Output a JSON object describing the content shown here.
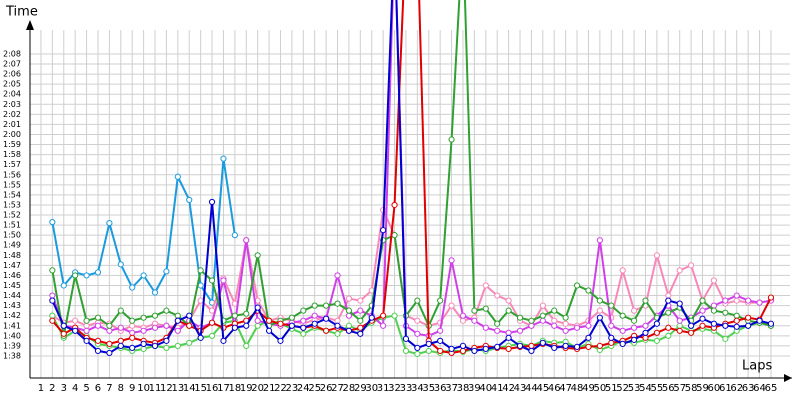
{
  "chart_data": {
    "type": "line",
    "y_label": "Time",
    "x_label": "Laps",
    "grid": true,
    "x": [
      1,
      2,
      3,
      4,
      5,
      6,
      7,
      8,
      9,
      10,
      11,
      12,
      13,
      14,
      15,
      16,
      17,
      18,
      19,
      20,
      21,
      22,
      23,
      24,
      25,
      26,
      27,
      28,
      29,
      30,
      31,
      32,
      33,
      34,
      35,
      36,
      37,
      38,
      39,
      40,
      41,
      42,
      43,
      44,
      45,
      46,
      47,
      48,
      49,
      50,
      51,
      52,
      53,
      54,
      55,
      56,
      57,
      58,
      59,
      60,
      61,
      62,
      63,
      64,
      65
    ],
    "xlim": [
      0.04,
      66.67
    ],
    "xticks": [
      1,
      2,
      3,
      4,
      5,
      6,
      7,
      8,
      9,
      10,
      11,
      12,
      13,
      14,
      15,
      16,
      17,
      18,
      19,
      20,
      21,
      22,
      23,
      24,
      25,
      26,
      27,
      28,
      29,
      30,
      31,
      32,
      33,
      34,
      35,
      36,
      37,
      38,
      39,
      40,
      41,
      42,
      43,
      44,
      45,
      46,
      47,
      48,
      49,
      50,
      51,
      52,
      53,
      54,
      55,
      56,
      57,
      58,
      59,
      60,
      61,
      62,
      63,
      64,
      65
    ],
    "ylim": [
      95.81,
      130.38
    ],
    "yticks": [
      {
        "value": 98,
        "label": "1:38"
      },
      {
        "value": 99,
        "label": "1:39"
      },
      {
        "value": 100,
        "label": "1:40"
      },
      {
        "value": 101,
        "label": "1:41"
      },
      {
        "value": 102,
        "label": "1:42"
      },
      {
        "value": 103,
        "label": "1:43"
      },
      {
        "value": 104,
        "label": "1:44"
      },
      {
        "value": 105,
        "label": "1:45"
      },
      {
        "value": 106,
        "label": "1:46"
      },
      {
        "value": 107,
        "label": "1:47"
      },
      {
        "value": 108,
        "label": "1:48"
      },
      {
        "value": 109,
        "label": "1:49"
      },
      {
        "value": 110,
        "label": "1:50"
      },
      {
        "value": 111,
        "label": "1:51"
      },
      {
        "value": 112,
        "label": "1:52"
      },
      {
        "value": 113,
        "label": "1:53"
      },
      {
        "value": 114,
        "label": "1:54"
      },
      {
        "value": 115,
        "label": "1:55"
      },
      {
        "value": 116,
        "label": "1:56"
      },
      {
        "value": 117,
        "label": "1:57"
      },
      {
        "value": 118,
        "label": "1:58"
      },
      {
        "value": 119,
        "label": "1:59"
      },
      {
        "value": 120,
        "label": "2:00"
      },
      {
        "value": 121,
        "label": "2:01"
      },
      {
        "value": 122,
        "label": "2:02"
      },
      {
        "value": 123,
        "label": "2:03"
      },
      {
        "value": 124,
        "label": "2:04"
      },
      {
        "value": 125,
        "label": "2:05"
      },
      {
        "value": 126,
        "label": "2:06"
      },
      {
        "value": 127,
        "label": "2:07"
      },
      {
        "value": 128,
        "label": "2:08"
      }
    ],
    "series": [
      {
        "color": "#1a9be0",
        "values": [
          null,
          111.3,
          105,
          106.3,
          106,
          106.3,
          111.2,
          107.1,
          104.8,
          106,
          104.3,
          106.4,
          115.8,
          113.5,
          105,
          103.3,
          117.6,
          110,
          null,
          null,
          null,
          null,
          null,
          null,
          null,
          null,
          null,
          null,
          null,
          null,
          null,
          null,
          null,
          null,
          null,
          null,
          null,
          null,
          null,
          null,
          null,
          null,
          null,
          null,
          null,
          null,
          null,
          null,
          null,
          null,
          null,
          null,
          null,
          null,
          null,
          null,
          null,
          null,
          null,
          null,
          null,
          null,
          null,
          null,
          null
        ]
      },
      {
        "color": "#f888b8",
        "values": [
          null,
          102,
          101.3,
          101.5,
          101,
          101.3,
          101.2,
          100.5,
          101,
          100.8,
          101.2,
          101,
          100.8,
          101.5,
          103.5,
          102.5,
          105.7,
          103.2,
          109.5,
          103.5,
          101.5,
          101.8,
          101.5,
          101.2,
          101.6,
          101.8,
          101.5,
          103.7,
          103.5,
          104.5,
          112.5,
          110,
          102,
          101.5,
          101,
          101.3,
          103,
          101.5,
          101.8,
          105,
          104,
          103.5,
          101.5,
          101,
          103,
          101.5,
          101.2,
          101,
          101.5,
          102.5,
          101.8,
          106.5,
          102.5,
          103,
          108,
          104,
          106.5,
          107,
          103.5,
          105.5,
          103.2,
          103.5,
          103.3,
          103.3,
          null
        ]
      },
      {
        "color": "#50d050",
        "values": [
          null,
          102,
          99.8,
          100.5,
          100,
          99.2,
          99,
          98.8,
          98.5,
          98.7,
          99,
          98.8,
          99,
          99.3,
          99.8,
          100,
          101.3,
          101.5,
          99,
          101,
          101.5,
          101.2,
          100.7,
          100.2,
          100.8,
          100.5,
          100.2,
          101,
          100.5,
          101.3,
          101.8,
          102,
          98.5,
          98.2,
          98.5,
          98.3,
          98.6,
          98.4,
          98.7,
          98.5,
          98.8,
          99,
          99.2,
          99,
          99.5,
          99.3,
          99.4,
          98.8,
          99.2,
          98.6,
          99,
          99.5,
          99.3,
          99.6,
          99.5,
          100,
          101,
          100.5,
          100.7,
          100.5,
          99.7,
          100.5,
          101,
          101.3,
          101
        ]
      },
      {
        "color": "#d040e8",
        "values": [
          null,
          104,
          101,
          100.8,
          100.5,
          101,
          100.5,
          100.8,
          100.3,
          100.5,
          100.8,
          101,
          100.5,
          101.5,
          100.8,
          101.3,
          105.5,
          101,
          109.5,
          101.5,
          101.2,
          101,
          101.3,
          101.5,
          102,
          101.7,
          106,
          102,
          102.5,
          102,
          101,
          140,
          101,
          100.2,
          100,
          100.5,
          107.5,
          102,
          101.5,
          100.8,
          100.5,
          100.3,
          100.5,
          101,
          101.5,
          101,
          100.5,
          100.8,
          101,
          109.5,
          101,
          100.5,
          100.8,
          101,
          102,
          103,
          101.5,
          101.8,
          102.5,
          103,
          103.5,
          104,
          103.5,
          103.3,
          103.5
        ]
      },
      {
        "color": "#30a030",
        "values": [
          null,
          106.5,
          100,
          106,
          101.5,
          101.8,
          101,
          102.5,
          101.5,
          101.8,
          102,
          102.5,
          102,
          101,
          106.5,
          105.5,
          101.5,
          102,
          102.2,
          108,
          101,
          101.5,
          101.8,
          102.5,
          103,
          103,
          103.2,
          102.5,
          101.5,
          103,
          109.5,
          110,
          102,
          103.5,
          101,
          103.5,
          119.5,
          140,
          102.5,
          102.7,
          101.2,
          102.5,
          101.8,
          101.5,
          102,
          102.5,
          101.8,
          105,
          104.5,
          103.5,
          103,
          102,
          101.5,
          103.5,
          101.8,
          102.3,
          102.8,
          101.5,
          103.5,
          102.5,
          102.3,
          102,
          101.5,
          101.3,
          101
        ]
      },
      {
        "color": "#e00000",
        "values": [
          null,
          101.5,
          100.2,
          100.8,
          99.8,
          99.5,
          99.2,
          99.5,
          99.8,
          99.5,
          99.3,
          99.8,
          101.5,
          101,
          100.5,
          101.3,
          100.8,
          101.2,
          101.5,
          102.5,
          101.5,
          101.2,
          101,
          100.8,
          101,
          100.5,
          100.8,
          100.5,
          100.8,
          101.5,
          102,
          113,
          140,
          140,
          99.5,
          98.5,
          98.3,
          98.5,
          98.8,
          99,
          98.8,
          98.7,
          98.9,
          99,
          99.2,
          99,
          98.8,
          98.7,
          98.9,
          99,
          99.3,
          99.5,
          100,
          99.8,
          100.3,
          100.8,
          100.5,
          100.3,
          101,
          100.8,
          101.2,
          101.5,
          101.8,
          101.6,
          103.8
        ]
      },
      {
        "color": "#0000d0",
        "values": [
          null,
          103.5,
          101,
          100.5,
          99.5,
          98.5,
          98.3,
          99,
          98.8,
          99.2,
          99,
          99.5,
          101.5,
          102,
          99.8,
          113.3,
          99.5,
          100.8,
          101,
          102.8,
          100.5,
          99.5,
          101,
          100.8,
          101.2,
          101.7,
          101,
          100.5,
          100.2,
          101.8,
          110.5,
          140,
          99.7,
          98.8,
          99.2,
          99.5,
          98.7,
          99,
          98.5,
          98.7,
          98.9,
          99.8,
          99,
          98.5,
          99.3,
          98.8,
          99,
          98.9,
          99.8,
          101.8,
          99.8,
          99.2,
          99.6,
          100.3,
          101.2,
          103.5,
          103.2,
          101,
          101.7,
          101.2,
          101,
          100.9,
          101,
          101.5,
          101.2
        ]
      }
    ]
  }
}
